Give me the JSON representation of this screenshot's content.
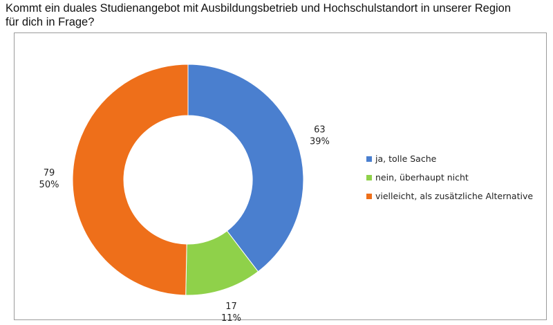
{
  "question": {
    "line1": "Kommt ein duales Studienangebot mit Ausbildungsbetrieb und Hochschulstandort in unserer Region",
    "line2": "für dich in Frage?"
  },
  "chart_data": {
    "type": "pie",
    "style": "donut",
    "title": "Kommt ein duales Studienangebot mit Ausbildungsbetrieb und Hochschulstandort in unserer Region für dich in Frage?",
    "legend_position": "right",
    "slices": [
      {
        "label": "ja, tolle Sache",
        "value": 63,
        "percent": "39%",
        "color": "#4a7fcf"
      },
      {
        "label": "nein, überhaupt nicht",
        "value": 17,
        "percent": "11%",
        "color": "#8fd14a"
      },
      {
        "label": "vielleicht, als zusätzliche Alternative",
        "value": 79,
        "percent": "50%",
        "color": "#ee6f1a"
      }
    ]
  }
}
